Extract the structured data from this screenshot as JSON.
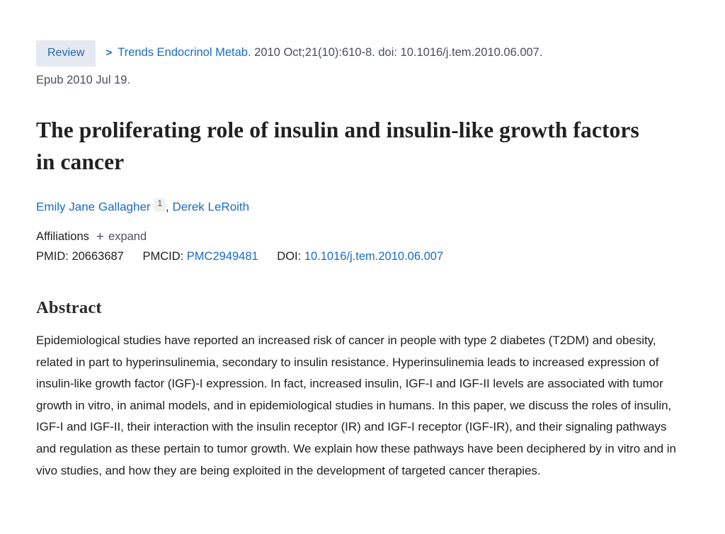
{
  "header": {
    "badge_label": "Review",
    "chevron_icon": ">",
    "journal_link": "Trends Endocrinol Metab.",
    "citation_text": "2010 Oct;21(10):610-8. doi: 10.1016/j.tem.2010.06.007.",
    "epub_text": "Epub 2010 Jul 19."
  },
  "title": "The proliferating role of insulin and insulin-like growth factors in cancer",
  "authors": {
    "first": {
      "name": "Emily Jane Gallagher",
      "sup": "1"
    },
    "separator": ", ",
    "second": {
      "name": "Derek LeRoith"
    }
  },
  "affiliations": {
    "label": "Affiliations",
    "expand_icon": "+",
    "expand_label": "expand"
  },
  "identifiers": {
    "pmid_label": "PMID:",
    "pmid_value": "20663687",
    "pmcid_label": "PMCID:",
    "pmcid_value": "PMC2949481",
    "doi_label": "DOI:",
    "doi_value": "10.1016/j.tem.2010.06.007"
  },
  "abstract": {
    "heading": "Abstract",
    "text": "Epidemiological studies have reported an increased risk of cancer in people with type 2 diabetes (T2DM) and obesity, related in part to hyperinsulinemia, secondary to insulin resistance. Hyperinsulinemia leads to increased expression of insulin-like growth factor (IGF)-I expression. In fact, increased insulin, IGF-I and IGF-II levels are associated with tumor growth in vitro, in animal models, and in epidemiological studies in humans. In this paper, we discuss the roles of insulin, IGF-I and IGF-II, their interaction with the insulin receptor (IR) and IGF-I receptor (IGF-IR), and their signaling pathways and regulation as these pertain to tumor growth. We explain how these pathways have been deciphered by in vitro and in vivo studies, and how they are being exploited in the development of targeted cancer therapies."
  },
  "colors": {
    "link_blue": "#1a6cc4",
    "badge_background": "#e5e9f2",
    "badge_text": "#2167b1",
    "body_text": "#212121",
    "muted_slate": "#49505a"
  }
}
